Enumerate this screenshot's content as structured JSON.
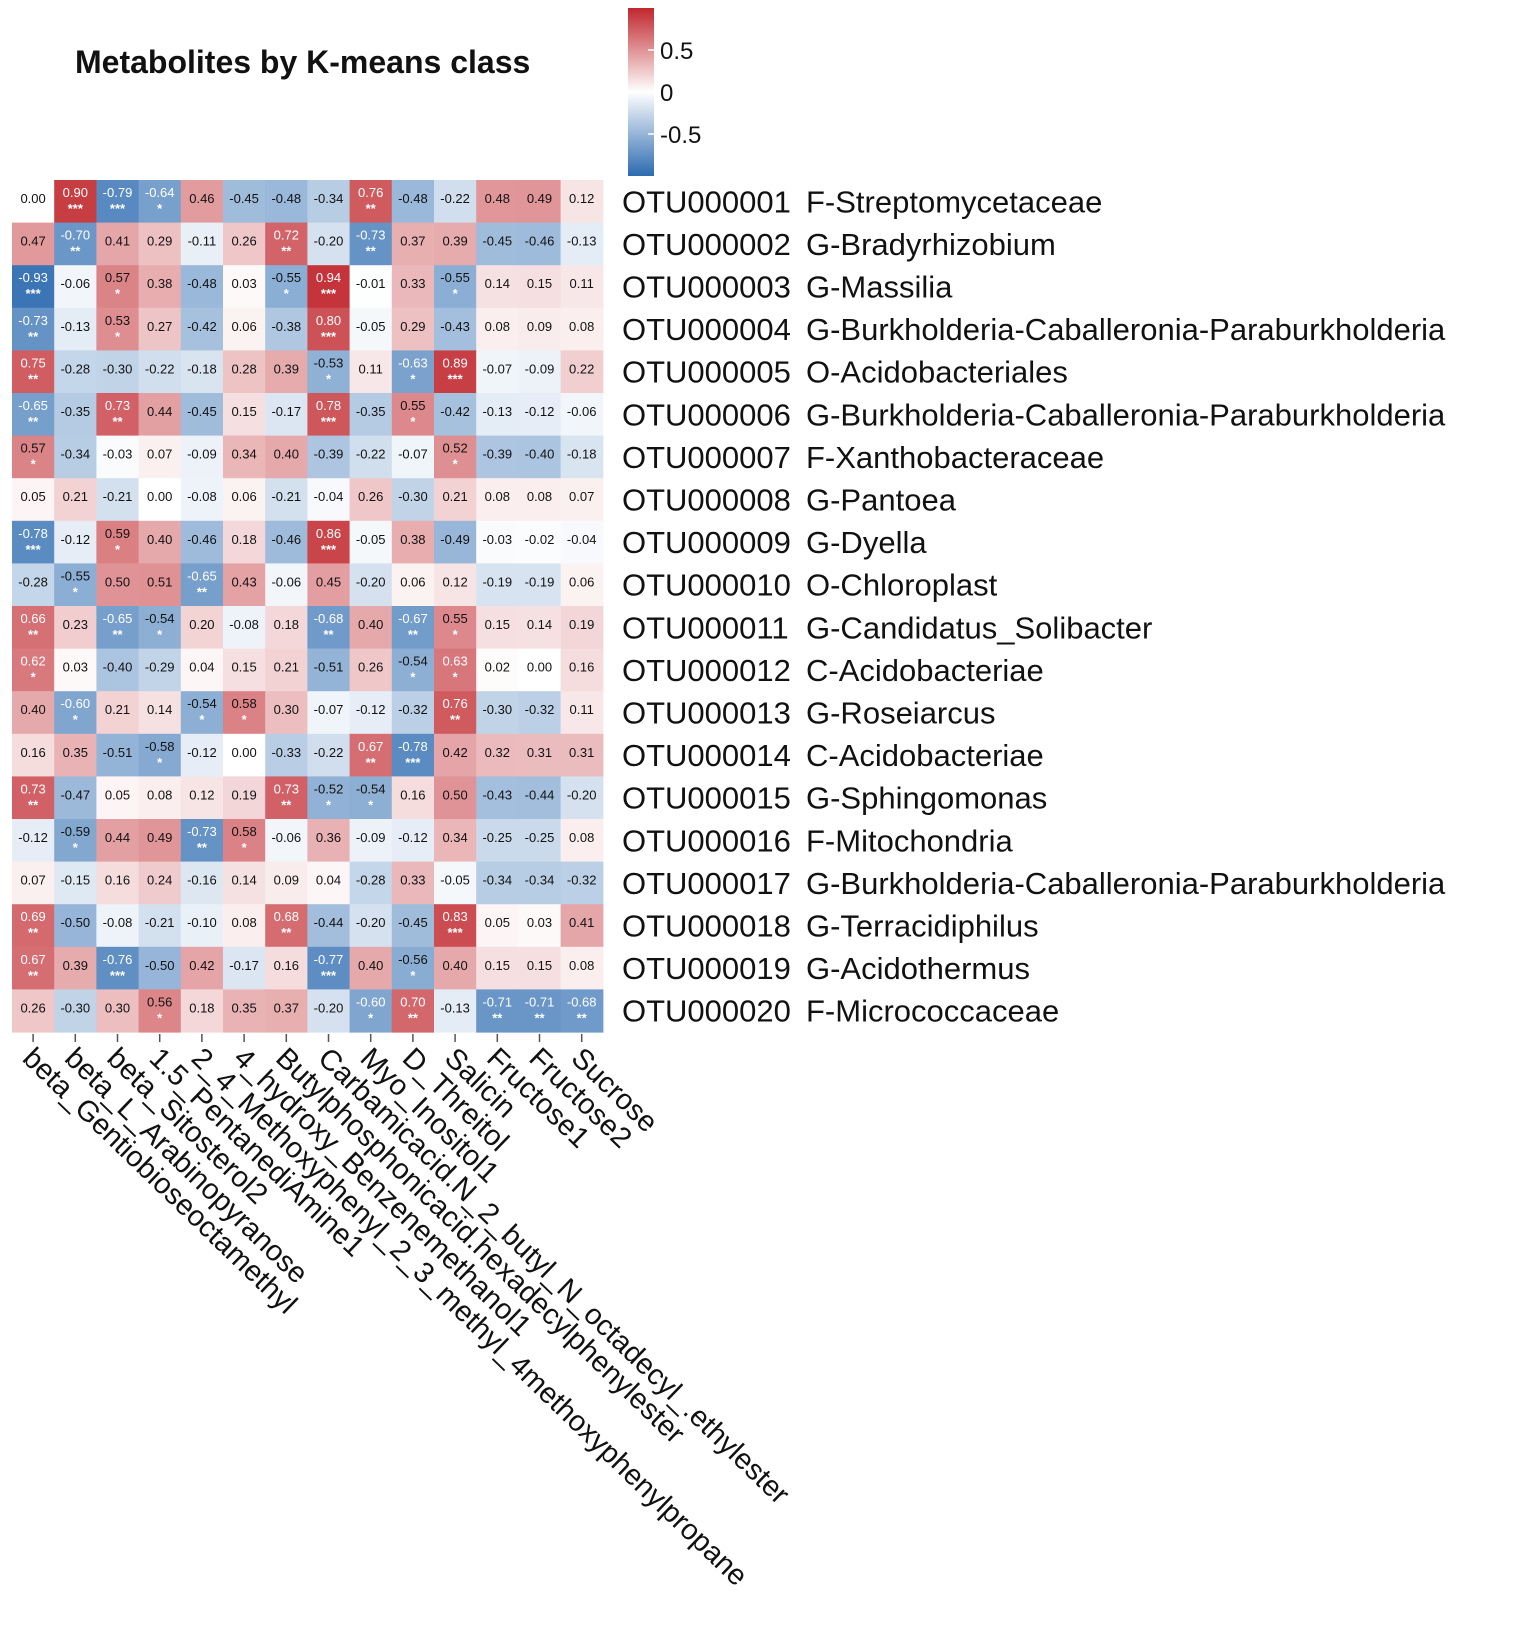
{
  "chart_data": {
    "type": "heatmap",
    "title": "Metabolites by K-means class",
    "colorscale": {
      "min": -1,
      "mid": 0,
      "max": 1,
      "low_color": "#2c6bb0",
      "mid_color": "#ffffff",
      "high_color": "#c0272d"
    },
    "colorbar_ticks": [
      "0.5",
      "0",
      "-0.5"
    ],
    "colorbar_tick_values": [
      0.5,
      0,
      -0.5
    ],
    "columns": [
      "beta_Gentiobioseoctamethyl",
      "beta_L_Arabinopyranose",
      "beta_Sitosterol2",
      "1.5_PentanediAmine1",
      "2_4_Methoxyphenyl_2_3_methyl_4methoxyphenylpropane",
      "4_hydroxy_Benzenemethanol1",
      "Butylphosphonicacid.hexadecylphenylester",
      "Carbamicacid.N_2_butyl_N_octadecyl_.ethylester",
      "Myo_Inositol1",
      "D_Threitol",
      "Salicin",
      "Fructose1",
      "Fructose2",
      "Sucrose"
    ],
    "rows": [
      {
        "otu": "OTU000001",
        "taxon": "F-Streptomycetaceae",
        "values": [
          "0.00",
          "0.90",
          "-0.79",
          "-0.64",
          "0.46",
          "-0.45",
          "-0.48",
          "-0.34",
          "0.76",
          "-0.48",
          "-0.22",
          "0.48",
          "0.49",
          "0.12"
        ],
        "stars": [
          "",
          "***",
          "***",
          "*",
          "",
          "",
          "",
          "",
          "**",
          "",
          "",
          "",
          "",
          ""
        ]
      },
      {
        "otu": "OTU000002",
        "taxon": "G-Bradyrhizobium",
        "values": [
          "0.47",
          "-0.70",
          "0.41",
          "0.29",
          "-0.11",
          "0.26",
          "0.72",
          "-0.20",
          "-0.73",
          "0.37",
          "0.39",
          "-0.45",
          "-0.46",
          "-0.13"
        ],
        "stars": [
          "",
          "**",
          "",
          "",
          "",
          "",
          "**",
          "",
          "**",
          "",
          "",
          "",
          "",
          ""
        ]
      },
      {
        "otu": "OTU000003",
        "taxon": "G-Massilia",
        "values": [
          "-0.93",
          "-0.06",
          "0.57",
          "0.38",
          "-0.48",
          "0.03",
          "-0.55",
          "0.94",
          "-0.01",
          "0.33",
          "-0.55",
          "0.14",
          "0.15",
          "0.11"
        ],
        "stars": [
          "***",
          "",
          "*",
          "",
          "",
          "",
          "*",
          "***",
          "",
          "",
          "*",
          "",
          "",
          ""
        ]
      },
      {
        "otu": "OTU000004",
        "taxon": "G-Burkholderia-Caballeronia-Paraburkholderia",
        "values": [
          "-0.73",
          "-0.13",
          "0.53",
          "0.27",
          "-0.42",
          "0.06",
          "-0.38",
          "0.80",
          "-0.05",
          "0.29",
          "-0.43",
          "0.08",
          "0.09",
          "0.08"
        ],
        "stars": [
          "**",
          "",
          "*",
          "",
          "",
          "",
          "",
          "***",
          "",
          "",
          "",
          "",
          "",
          ""
        ]
      },
      {
        "otu": "OTU000005",
        "taxon": "O-Acidobacteriales",
        "values": [
          "0.75",
          "-0.28",
          "-0.30",
          "-0.22",
          "-0.18",
          "0.28",
          "0.39",
          "-0.53",
          "0.11",
          "-0.63",
          "0.89",
          "-0.07",
          "-0.09",
          "0.22"
        ],
        "stars": [
          "**",
          "",
          "",
          "",
          "",
          "",
          "",
          "*",
          "",
          "*",
          "***",
          "",
          "",
          ""
        ]
      },
      {
        "otu": "OTU000006",
        "taxon": "G-Burkholderia-Caballeronia-Paraburkholderia",
        "values": [
          "-0.65",
          "-0.35",
          "0.73",
          "0.44",
          "-0.45",
          "0.15",
          "-0.17",
          "0.78",
          "-0.35",
          "0.55",
          "-0.42",
          "-0.13",
          "-0.12",
          "-0.06"
        ],
        "stars": [
          "**",
          "",
          "**",
          "",
          "",
          "",
          "",
          "***",
          "",
          "*",
          "",
          "",
          "",
          ""
        ]
      },
      {
        "otu": "OTU000007",
        "taxon": "F-Xanthobacteraceae",
        "values": [
          "0.57",
          "-0.34",
          "-0.03",
          "0.07",
          "-0.09",
          "0.34",
          "0.40",
          "-0.39",
          "-0.22",
          "-0.07",
          "0.52",
          "-0.39",
          "-0.40",
          "-0.18"
        ],
        "stars": [
          "*",
          "",
          "",
          "",
          "",
          "",
          "",
          "",
          "",
          "",
          "*",
          "",
          "",
          ""
        ]
      },
      {
        "otu": "OTU000008",
        "taxon": "G-Pantoea",
        "values": [
          "0.05",
          "0.21",
          "-0.21",
          "0.00",
          "-0.08",
          "0.06",
          "-0.21",
          "-0.04",
          "0.26",
          "-0.30",
          "0.21",
          "0.08",
          "0.08",
          "0.07"
        ],
        "stars": [
          "",
          "",
          "",
          "",
          "",
          "",
          "",
          "",
          "",
          "",
          "",
          "",
          "",
          ""
        ]
      },
      {
        "otu": "OTU000009",
        "taxon": "G-Dyella",
        "values": [
          "-0.78",
          "-0.12",
          "0.59",
          "0.40",
          "-0.46",
          "0.18",
          "-0.46",
          "0.86",
          "-0.05",
          "0.38",
          "-0.49",
          "-0.03",
          "-0.02",
          "-0.04"
        ],
        "stars": [
          "***",
          "",
          "*",
          "",
          "",
          "",
          "",
          "***",
          "",
          "",
          "",
          "",
          "",
          ""
        ]
      },
      {
        "otu": "OTU000010",
        "taxon": "O-Chloroplast",
        "values": [
          "-0.28",
          "-0.55",
          "0.50",
          "0.51",
          "-0.65",
          "0.43",
          "-0.06",
          "0.45",
          "-0.20",
          "0.06",
          "0.12",
          "-0.19",
          "-0.19",
          "0.06"
        ],
        "stars": [
          "",
          "*",
          "",
          "",
          "**",
          "",
          "",
          "",
          "",
          "",
          "",
          "",
          "",
          ""
        ]
      },
      {
        "otu": "OTU000011",
        "taxon": "G-Candidatus_Solibacter",
        "values": [
          "0.66",
          "0.23",
          "-0.65",
          "-0.54",
          "0.20",
          "-0.08",
          "0.18",
          "-0.68",
          "0.40",
          "-0.67",
          "0.55",
          "0.15",
          "0.14",
          "0.19"
        ],
        "stars": [
          "**",
          "",
          "**",
          "*",
          "",
          "",
          "",
          "**",
          "",
          "**",
          "*",
          "",
          "",
          ""
        ]
      },
      {
        "otu": "OTU000012",
        "taxon": "C-Acidobacteriae",
        "values": [
          "0.62",
          "0.03",
          "-0.40",
          "-0.29",
          "0.04",
          "0.15",
          "0.21",
          "-0.51",
          "0.26",
          "-0.54",
          "0.63",
          "0.02",
          "0.00",
          "0.16"
        ],
        "stars": [
          "*",
          "",
          "",
          "",
          "",
          "",
          "",
          "",
          "",
          "*",
          "*",
          "",
          "",
          ""
        ]
      },
      {
        "otu": "OTU000013",
        "taxon": "G-Roseiarcus",
        "values": [
          "0.40",
          "-0.60",
          "0.21",
          "0.14",
          "-0.54",
          "0.58",
          "0.30",
          "-0.07",
          "-0.12",
          "-0.32",
          "0.76",
          "-0.30",
          "-0.32",
          "0.11"
        ],
        "stars": [
          "",
          "*",
          "",
          "",
          "*",
          "*",
          "",
          "",
          "",
          "",
          "**",
          "",
          "",
          ""
        ]
      },
      {
        "otu": "OTU000014",
        "taxon": "C-Acidobacteriae",
        "values": [
          "0.16",
          "0.35",
          "-0.51",
          "-0.58",
          "-0.12",
          "0.00",
          "-0.33",
          "-0.22",
          "0.67",
          "-0.78",
          "0.42",
          "0.32",
          "0.31",
          "0.31"
        ],
        "stars": [
          "",
          "",
          "",
          "*",
          "",
          "",
          "",
          "",
          "**",
          "***",
          "",
          "",
          "",
          ""
        ]
      },
      {
        "otu": "OTU000015",
        "taxon": "G-Sphingomonas",
        "values": [
          "0.73",
          "-0.47",
          "0.05",
          "0.08",
          "0.12",
          "0.19",
          "0.73",
          "-0.52",
          "-0.54",
          "0.16",
          "0.50",
          "-0.43",
          "-0.44",
          "-0.20"
        ],
        "stars": [
          "**",
          "",
          "",
          "",
          "",
          "",
          "**",
          "*",
          "*",
          "",
          "",
          "",
          "",
          ""
        ]
      },
      {
        "otu": "OTU000016",
        "taxon": "F-Mitochondria",
        "values": [
          "-0.12",
          "-0.59",
          "0.44",
          "0.49",
          "-0.73",
          "0.58",
          "-0.06",
          "0.36",
          "-0.09",
          "-0.12",
          "0.34",
          "-0.25",
          "-0.25",
          "0.08"
        ],
        "stars": [
          "",
          "*",
          "",
          "",
          "**",
          "*",
          "",
          "",
          "",
          "",
          "",
          "",
          "",
          ""
        ]
      },
      {
        "otu": "OTU000017",
        "taxon": "G-Burkholderia-Caballeronia-Paraburkholderia",
        "values": [
          "0.07",
          "-0.15",
          "0.16",
          "0.24",
          "-0.16",
          "0.14",
          "0.09",
          "0.04",
          "-0.28",
          "0.33",
          "-0.05",
          "-0.34",
          "-0.34",
          "-0.32"
        ],
        "stars": [
          "",
          "",
          "",
          "",
          "",
          "",
          "",
          "",
          "",
          "",
          "",
          "",
          "",
          ""
        ]
      },
      {
        "otu": "OTU000018",
        "taxon": "G-Terracidiphilus",
        "values": [
          "0.69",
          "-0.50",
          "-0.08",
          "-0.21",
          "-0.10",
          "0.08",
          "0.68",
          "-0.44",
          "-0.20",
          "-0.45",
          "0.83",
          "0.05",
          "0.03",
          "0.41"
        ],
        "stars": [
          "**",
          "",
          "",
          "",
          "",
          "",
          "**",
          "",
          "",
          "",
          "***",
          "",
          "",
          ""
        ]
      },
      {
        "otu": "OTU000019",
        "taxon": "G-Acidothermus",
        "values": [
          "0.67",
          "0.39",
          "-0.76",
          "-0.50",
          "0.42",
          "-0.17",
          "0.16",
          "-0.77",
          "0.40",
          "-0.56",
          "0.40",
          "0.15",
          "0.15",
          "0.08"
        ],
        "stars": [
          "**",
          "",
          "***",
          "",
          "",
          "",
          "",
          "***",
          "",
          "*",
          "",
          "",
          "",
          ""
        ]
      },
      {
        "otu": "OTU000020",
        "taxon": "F-Micrococcaceae",
        "values": [
          "0.26",
          "-0.30",
          "0.30",
          "0.56",
          "0.18",
          "0.35",
          "0.37",
          "-0.20",
          "-0.60",
          "0.70",
          "-0.13",
          "-0.71",
          "-0.71",
          "-0.68"
        ],
        "stars": [
          "",
          "",
          "",
          "*",
          "",
          "",
          "",
          "",
          "*",
          "**",
          "",
          "**",
          "**",
          "**"
        ]
      }
    ]
  }
}
